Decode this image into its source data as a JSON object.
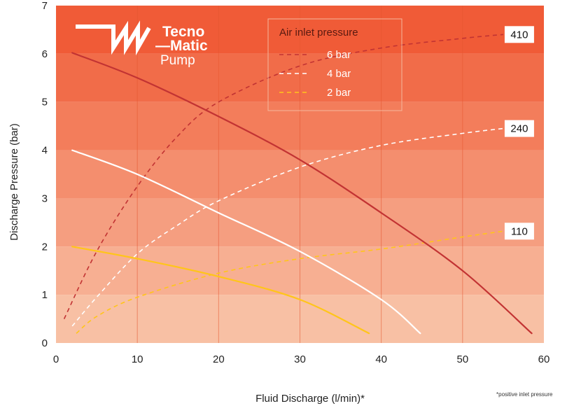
{
  "logo": {
    "line1": "Tecno",
    "line2": "—Matic",
    "line3": "Pump"
  },
  "footnote": "*positive inlet pressure",
  "colors": {
    "band_top": "#f05b37",
    "band_bottom": "#f8c0a4",
    "red": "#c23333",
    "white": "#ffffff",
    "yellow": "#ffc51a"
  },
  "chart_data": {
    "type": "line",
    "xlabel": "Fluid Discharge (l/min)*",
    "ylabel": "Discharge Pressure (bar)",
    "xlim": [
      0,
      60
    ],
    "ylim": [
      0,
      7
    ],
    "xticks": [
      "0",
      "10",
      "20",
      "30",
      "40",
      "50",
      "60"
    ],
    "yticks": [
      "0",
      "1",
      "2",
      "3",
      "4",
      "5",
      "6",
      "7"
    ],
    "grid": true,
    "legend": {
      "title": "Air inlet pressure",
      "placement": "top-center",
      "entries": [
        "6 bar",
        "4 bar",
        "2 bar"
      ]
    },
    "pressure_curves": [
      {
        "name": "6 bar",
        "color": "red",
        "x": [
          2,
          10,
          20,
          30,
          40,
          50,
          58.5
        ],
        "y": [
          6.02,
          5.5,
          4.7,
          3.8,
          2.7,
          1.5,
          0.2
        ]
      },
      {
        "name": "4 bar",
        "color": "white",
        "x": [
          2,
          10,
          20,
          30,
          40,
          44.8
        ],
        "y": [
          4.0,
          3.5,
          2.7,
          1.9,
          0.9,
          0.2
        ]
      },
      {
        "name": "2 bar",
        "color": "yellow",
        "x": [
          2,
          10,
          20,
          30,
          38.5
        ],
        "y": [
          2.0,
          1.75,
          1.38,
          0.9,
          0.2
        ]
      }
    ],
    "air_consumption_curves": [
      {
        "label": "410",
        "color": "red",
        "x": [
          1,
          5,
          10,
          15,
          20,
          30,
          40,
          50,
          55
        ],
        "y": [
          0.5,
          1.9,
          3.25,
          4.3,
          5.0,
          5.75,
          6.12,
          6.32,
          6.4
        ]
      },
      {
        "label": "240",
        "color": "white",
        "x": [
          2,
          5,
          10,
          15,
          20,
          30,
          40,
          50,
          55
        ],
        "y": [
          0.35,
          0.95,
          1.85,
          2.45,
          2.95,
          3.65,
          4.1,
          4.35,
          4.45
        ]
      },
      {
        "label": "110",
        "color": "yellow",
        "x": [
          2.5,
          5,
          10,
          20,
          30,
          40,
          50,
          55
        ],
        "y": [
          0.2,
          0.55,
          0.95,
          1.45,
          1.75,
          1.95,
          2.2,
          2.32
        ]
      }
    ]
  }
}
